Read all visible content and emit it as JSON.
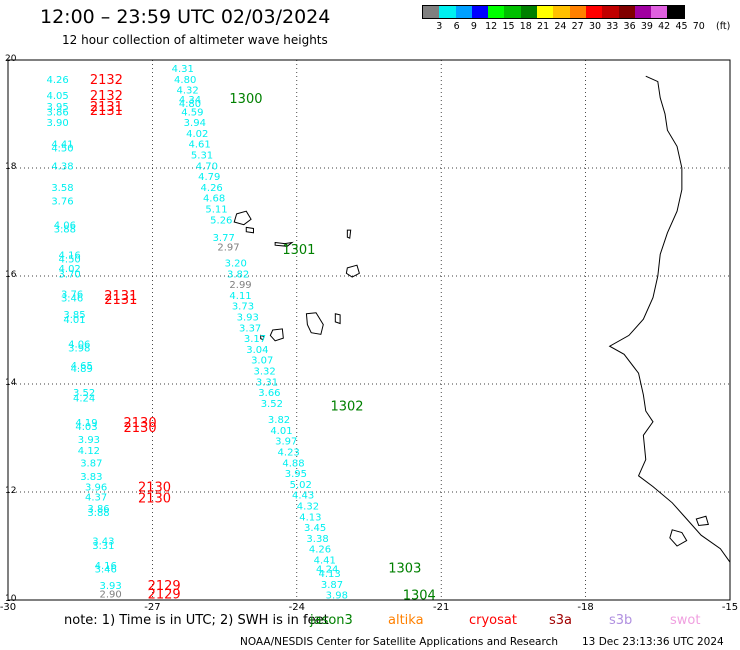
{
  "header": {
    "title": "12:00 – 23:59 UTC 02/03/2024",
    "subtitle": "12 hour collection of altimeter wave heights"
  },
  "legend": {
    "unit": "(ft)",
    "bins": [
      {
        "label": "3",
        "color": "#808080"
      },
      {
        "label": "6",
        "color": "#00f0f0"
      },
      {
        "label": "9",
        "color": "#00a0ff"
      },
      {
        "label": "12",
        "color": "#0000ff"
      },
      {
        "label": "15",
        "color": "#00ff00"
      },
      {
        "label": "18",
        "color": "#00c000"
      },
      {
        "label": "21",
        "color": "#008000"
      },
      {
        "label": "24",
        "color": "#ffff00"
      },
      {
        "label": "27",
        "color": "#ffc000"
      },
      {
        "label": "30",
        "color": "#ff8000"
      },
      {
        "label": "33",
        "color": "#ff0000"
      },
      {
        "label": "36",
        "color": "#c00000"
      },
      {
        "label": "39",
        "color": "#800000"
      },
      {
        "label": "42",
        "color": "#a000a0"
      },
      {
        "label": "45",
        "color": "#e060e0"
      },
      {
        "label": "70",
        "color": "#000000"
      }
    ]
  },
  "map": {
    "lon_range": [
      -30,
      -15
    ],
    "lat_range": [
      10,
      20
    ],
    "lat_ticks": [
      "20",
      "18",
      "16",
      "14",
      "12",
      "10"
    ],
    "lon_ticks": [
      "-30",
      "-27",
      "-24",
      "-21",
      "-18",
      "-15"
    ]
  },
  "passes": [
    {
      "label": "2132",
      "color": "#ff0000",
      "lon": -28.3,
      "lat": 19.65
    },
    {
      "label": "2132",
      "color": "#ff0000",
      "lon": -28.3,
      "lat": 19.35
    },
    {
      "label": "2131",
      "color": "#ff0000",
      "lon": -28.3,
      "lat": 19.15
    },
    {
      "label": "2131",
      "color": "#ff0000",
      "lon": -28.3,
      "lat": 19.07
    },
    {
      "label": "1300",
      "color": "#008000",
      "lon": -25.4,
      "lat": 19.3
    },
    {
      "label": "1301",
      "color": "#008000",
      "lon": -24.3,
      "lat": 16.5
    },
    {
      "label": "2131",
      "color": "#ff0000",
      "lon": -28.0,
      "lat": 15.65
    },
    {
      "label": "2131",
      "color": "#ff0000",
      "lon": -28.0,
      "lat": 15.57
    },
    {
      "label": "1302",
      "color": "#008000",
      "lon": -23.3,
      "lat": 13.6
    },
    {
      "label": "2130",
      "color": "#ff0000",
      "lon": -27.6,
      "lat": 13.3
    },
    {
      "label": "2130",
      "color": "#ff0000",
      "lon": -27.6,
      "lat": 13.2
    },
    {
      "label": "2130",
      "color": "#ff0000",
      "lon": -27.3,
      "lat": 12.1
    },
    {
      "label": "2130",
      "color": "#ff0000",
      "lon": -27.3,
      "lat": 11.9
    },
    {
      "label": "1303",
      "color": "#008000",
      "lon": -22.1,
      "lat": 10.6
    },
    {
      "label": "2129",
      "color": "#ff0000",
      "lon": -27.1,
      "lat": 10.28
    },
    {
      "label": "2129",
      "color": "#ff0000",
      "lon": -27.1,
      "lat": 10.12
    },
    {
      "label": "1304",
      "color": "#008000",
      "lon": -21.8,
      "lat": 10.1
    }
  ],
  "observations": [
    {
      "v": "4.31",
      "c": "#00f0f0",
      "lon": -26.6,
      "lat": 19.85
    },
    {
      "v": "4.80",
      "c": "#00f0f0",
      "lon": -26.55,
      "lat": 19.65
    },
    {
      "v": "4.32",
      "c": "#00f0f0",
      "lon": -26.5,
      "lat": 19.45
    },
    {
      "v": "4.34",
      "c": "#00f0f0",
      "lon": -26.45,
      "lat": 19.28
    },
    {
      "v": "4.80",
      "c": "#00f0f0",
      "lon": -26.45,
      "lat": 19.2
    },
    {
      "v": "4.59",
      "c": "#00f0f0",
      "lon": -26.4,
      "lat": 19.05
    },
    {
      "v": "3.94",
      "c": "#00f0f0",
      "lon": -26.35,
      "lat": 18.85
    },
    {
      "v": "4.02",
      "c": "#00f0f0",
      "lon": -26.3,
      "lat": 18.65
    },
    {
      "v": "4.61",
      "c": "#00f0f0",
      "lon": -26.25,
      "lat": 18.45
    },
    {
      "v": "5.31",
      "c": "#00f0f0",
      "lon": -26.2,
      "lat": 18.25
    },
    {
      "v": "4.70",
      "c": "#00f0f0",
      "lon": -26.1,
      "lat": 18.05
    },
    {
      "v": "4.79",
      "c": "#00f0f0",
      "lon": -26.05,
      "lat": 17.85
    },
    {
      "v": "4.26",
      "c": "#00f0f0",
      "lon": -26.0,
      "lat": 17.65
    },
    {
      "v": "4.68",
      "c": "#00f0f0",
      "lon": -25.95,
      "lat": 17.45
    },
    {
      "v": "5.11",
      "c": "#00f0f0",
      "lon": -25.9,
      "lat": 17.25
    },
    {
      "v": "5.26",
      "c": "#00f0f0",
      "lon": -25.8,
      "lat": 17.05
    },
    {
      "v": "3.77",
      "c": "#00f0f0",
      "lon": -25.75,
      "lat": 16.72
    },
    {
      "v": "2.97",
      "c": "#808080",
      "lon": -25.65,
      "lat": 16.55
    },
    {
      "v": "3.20",
      "c": "#00f0f0",
      "lon": -25.5,
      "lat": 16.25
    },
    {
      "v": "3.82",
      "c": "#00f0f0",
      "lon": -25.45,
      "lat": 16.05
    },
    {
      "v": "2.99",
      "c": "#808080",
      "lon": -25.4,
      "lat": 15.85
    },
    {
      "v": "4.11",
      "c": "#00f0f0",
      "lon": -25.4,
      "lat": 15.65
    },
    {
      "v": "3.73",
      "c": "#00f0f0",
      "lon": -25.35,
      "lat": 15.45
    },
    {
      "v": "3.93",
      "c": "#00f0f0",
      "lon": -25.25,
      "lat": 15.25
    },
    {
      "v": "3.37",
      "c": "#00f0f0",
      "lon": -25.2,
      "lat": 15.05
    },
    {
      "v": "3.17",
      "c": "#00f0f0",
      "lon": -25.1,
      "lat": 14.85
    },
    {
      "v": "3.04",
      "c": "#00f0f0",
      "lon": -25.05,
      "lat": 14.65
    },
    {
      "v": "3.07",
      "c": "#00f0f0",
      "lon": -24.95,
      "lat": 14.45
    },
    {
      "v": "3.32",
      "c": "#00f0f0",
      "lon": -24.9,
      "lat": 14.25
    },
    {
      "v": "3.31",
      "c": "#00f0f0",
      "lon": -24.85,
      "lat": 14.05
    },
    {
      "v": "3.66",
      "c": "#00f0f0",
      "lon": -24.8,
      "lat": 13.85
    },
    {
      "v": "3.52",
      "c": "#00f0f0",
      "lon": -24.75,
      "lat": 13.65
    },
    {
      "v": "3.82",
      "c": "#00f0f0",
      "lon": -24.6,
      "lat": 13.35
    },
    {
      "v": "4.01",
      "c": "#00f0f0",
      "lon": -24.55,
      "lat": 13.15
    },
    {
      "v": "3.97",
      "c": "#00f0f0",
      "lon": -24.45,
      "lat": 12.95
    },
    {
      "v": "4.23",
      "c": "#00f0f0",
      "lon": -24.4,
      "lat": 12.75
    },
    {
      "v": "4.88",
      "c": "#00f0f0",
      "lon": -24.3,
      "lat": 12.55
    },
    {
      "v": "3.95",
      "c": "#00f0f0",
      "lon": -24.25,
      "lat": 12.35
    },
    {
      "v": "5.02",
      "c": "#00f0f0",
      "lon": -24.15,
      "lat": 12.15
    },
    {
      "v": "4.43",
      "c": "#00f0f0",
      "lon": -24.1,
      "lat": 11.95
    },
    {
      "v": "4.32",
      "c": "#00f0f0",
      "lon": -24.0,
      "lat": 11.75
    },
    {
      "v": "4.13",
      "c": "#00f0f0",
      "lon": -23.95,
      "lat": 11.55
    },
    {
      "v": "3.45",
      "c": "#00f0f0",
      "lon": -23.85,
      "lat": 11.35
    },
    {
      "v": "3.38",
      "c": "#00f0f0",
      "lon": -23.8,
      "lat": 11.15
    },
    {
      "v": "4.26",
      "c": "#00f0f0",
      "lon": -23.75,
      "lat": 10.95
    },
    {
      "v": "4.41",
      "c": "#00f0f0",
      "lon": -23.65,
      "lat": 10.75
    },
    {
      "v": "4.24",
      "c": "#00f0f0",
      "lon": -23.6,
      "lat": 10.58
    },
    {
      "v": "4.13",
      "c": "#00f0f0",
      "lon": -23.55,
      "lat": 10.5
    },
    {
      "v": "3.87",
      "c": "#00f0f0",
      "lon": -23.5,
      "lat": 10.3
    },
    {
      "v": "3.98",
      "c": "#00f0f0",
      "lon": -23.4,
      "lat": 10.1
    },
    {
      "v": "4.26",
      "c": "#00f0f0",
      "lon": -29.2,
      "lat": 19.65
    },
    {
      "v": "4.05",
      "c": "#00f0f0",
      "lon": -29.2,
      "lat": 19.35
    },
    {
      "v": "3.95",
      "c": "#00f0f0",
      "lon": -29.2,
      "lat": 19.15
    },
    {
      "v": "3.86",
      "c": "#00f0f0",
      "lon": -29.2,
      "lat": 19.05
    },
    {
      "v": "3.90",
      "c": "#00f0f0",
      "lon": -29.2,
      "lat": 18.85
    },
    {
      "v": "4.41",
      "c": "#00f0f0",
      "lon": -29.1,
      "lat": 18.45
    },
    {
      "v": "4.50",
      "c": "#00f0f0",
      "lon": -29.1,
      "lat": 18.38
    },
    {
      "v": "4.38",
      "c": "#00f0f0",
      "lon": -29.1,
      "lat": 18.05
    },
    {
      "v": "3.58",
      "c": "#00f0f0",
      "lon": -29.1,
      "lat": 17.65
    },
    {
      "v": "3.76",
      "c": "#00f0f0",
      "lon": -29.1,
      "lat": 17.4
    },
    {
      "v": "4.06",
      "c": "#00f0f0",
      "lon": -29.05,
      "lat": 16.95
    },
    {
      "v": "3.88",
      "c": "#00f0f0",
      "lon": -29.05,
      "lat": 16.88
    },
    {
      "v": "4.16",
      "c": "#00f0f0",
      "lon": -28.95,
      "lat": 16.4
    },
    {
      "v": "4.50",
      "c": "#00f0f0",
      "lon": -28.95,
      "lat": 16.32
    },
    {
      "v": "4.02",
      "c": "#00f0f0",
      "lon": -28.95,
      "lat": 16.15
    },
    {
      "v": "3.70",
      "c": "#00f0f0",
      "lon": -28.95,
      "lat": 16.05
    },
    {
      "v": "3.76",
      "c": "#00f0f0",
      "lon": -28.9,
      "lat": 15.68
    },
    {
      "v": "3.46",
      "c": "#00f0f0",
      "lon": -28.9,
      "lat": 15.6
    },
    {
      "v": "3.85",
      "c": "#00f0f0",
      "lon": -28.85,
      "lat": 15.3
    },
    {
      "v": "4.01",
      "c": "#00f0f0",
      "lon": -28.85,
      "lat": 15.2
    },
    {
      "v": "4.06",
      "c": "#00f0f0",
      "lon": -28.75,
      "lat": 14.75
    },
    {
      "v": "3.98",
      "c": "#00f0f0",
      "lon": -28.75,
      "lat": 14.68
    },
    {
      "v": "4.65",
      "c": "#00f0f0",
      "lon": -28.7,
      "lat": 14.35
    },
    {
      "v": "4.89",
      "c": "#00f0f0",
      "lon": -28.7,
      "lat": 14.3
    },
    {
      "v": "3.52",
      "c": "#00f0f0",
      "lon": -28.65,
      "lat": 13.85
    },
    {
      "v": "4.24",
      "c": "#00f0f0",
      "lon": -28.65,
      "lat": 13.75
    },
    {
      "v": "4.19",
      "c": "#00f0f0",
      "lon": -28.6,
      "lat": 13.3
    },
    {
      "v": "4.03",
      "c": "#00f0f0",
      "lon": -28.6,
      "lat": 13.22
    },
    {
      "v": "3.93",
      "c": "#00f0f0",
      "lon": -28.55,
      "lat": 12.98
    },
    {
      "v": "4.12",
      "c": "#00f0f0",
      "lon": -28.55,
      "lat": 12.78
    },
    {
      "v": "3.87",
      "c": "#00f0f0",
      "lon": -28.5,
      "lat": 12.55
    },
    {
      "v": "3.83",
      "c": "#00f0f0",
      "lon": -28.5,
      "lat": 12.3
    },
    {
      "v": "3.96",
      "c": "#00f0f0",
      "lon": -28.4,
      "lat": 12.1
    },
    {
      "v": "4.37",
      "c": "#00f0f0",
      "lon": -28.4,
      "lat": 11.92
    },
    {
      "v": "3.86",
      "c": "#00f0f0",
      "lon": -28.35,
      "lat": 11.7
    },
    {
      "v": "3.88",
      "c": "#00f0f0",
      "lon": -28.35,
      "lat": 11.63
    },
    {
      "v": "3.43",
      "c": "#00f0f0",
      "lon": -28.25,
      "lat": 11.1
    },
    {
      "v": "3.31",
      "c": "#00f0f0",
      "lon": -28.25,
      "lat": 11.02
    },
    {
      "v": "4.16",
      "c": "#00f0f0",
      "lon": -28.2,
      "lat": 10.65
    },
    {
      "v": "3.46",
      "c": "#00f0f0",
      "lon": -28.2,
      "lat": 10.58
    },
    {
      "v": "3.93",
      "c": "#00f0f0",
      "lon": -28.1,
      "lat": 10.28
    },
    {
      "v": "2.90",
      "c": "#808080",
      "lon": -28.1,
      "lat": 10.12
    }
  ],
  "land": [
    {
      "name": "coastline",
      "points": [
        [
          -16.75,
          19.7
        ],
        [
          -16.5,
          19.6
        ],
        [
          -16.45,
          19.3
        ],
        [
          -16.35,
          19.0
        ],
        [
          -16.3,
          18.7
        ],
        [
          -16.1,
          18.4
        ],
        [
          -16.0,
          18.0
        ],
        [
          -16.0,
          17.6
        ],
        [
          -16.1,
          17.2
        ],
        [
          -16.3,
          16.8
        ],
        [
          -16.45,
          16.4
        ],
        [
          -16.5,
          16.0
        ],
        [
          -16.6,
          15.6
        ],
        [
          -16.8,
          15.2
        ],
        [
          -17.1,
          14.9
        ],
        [
          -17.5,
          14.7
        ],
        [
          -17.2,
          14.55
        ],
        [
          -16.9,
          14.2
        ],
        [
          -16.8,
          13.8
        ],
        [
          -16.75,
          13.5
        ],
        [
          -16.6,
          13.3
        ],
        [
          -16.8,
          13.05
        ],
        [
          -16.75,
          12.6
        ],
        [
          -16.9,
          12.3
        ],
        [
          -16.6,
          12.1
        ],
        [
          -16.2,
          11.8
        ],
        [
          -15.9,
          11.5
        ],
        [
          -15.6,
          11.2
        ],
        [
          -15.2,
          10.95
        ],
        [
          -15.0,
          10.7
        ]
      ]
    },
    {
      "name": "santo-antao",
      "points": [
        [
          -25.25,
          17.15
        ],
        [
          -25.05,
          17.2
        ],
        [
          -24.95,
          17.05
        ],
        [
          -25.1,
          16.95
        ],
        [
          -25.3,
          17.0
        ]
      ]
    },
    {
      "name": "sao-vicente",
      "points": [
        [
          -25.05,
          16.9
        ],
        [
          -24.9,
          16.88
        ],
        [
          -24.9,
          16.8
        ],
        [
          -25.05,
          16.82
        ]
      ]
    },
    {
      "name": "sao-nicolau",
      "points": [
        [
          -24.45,
          16.62
        ],
        [
          -24.25,
          16.6
        ],
        [
          -24.1,
          16.62
        ],
        [
          -24.2,
          16.55
        ],
        [
          -24.45,
          16.57
        ]
      ]
    },
    {
      "name": "sal",
      "points": [
        [
          -22.95,
          16.85
        ],
        [
          -22.88,
          16.85
        ],
        [
          -22.9,
          16.7
        ],
        [
          -22.95,
          16.72
        ]
      ]
    },
    {
      "name": "boa-vista",
      "points": [
        [
          -22.95,
          16.15
        ],
        [
          -22.75,
          16.2
        ],
        [
          -22.7,
          16.05
        ],
        [
          -22.85,
          15.98
        ],
        [
          -22.97,
          16.05
        ]
      ]
    },
    {
      "name": "maio",
      "points": [
        [
          -23.2,
          15.3
        ],
        [
          -23.1,
          15.28
        ],
        [
          -23.1,
          15.12
        ],
        [
          -23.2,
          15.15
        ]
      ]
    },
    {
      "name": "santiago",
      "points": [
        [
          -23.8,
          15.3
        ],
        [
          -23.6,
          15.32
        ],
        [
          -23.45,
          15.1
        ],
        [
          -23.5,
          14.92
        ],
        [
          -23.7,
          14.95
        ],
        [
          -23.78,
          15.1
        ]
      ]
    },
    {
      "name": "fogo",
      "points": [
        [
          -24.5,
          15.0
        ],
        [
          -24.3,
          15.02
        ],
        [
          -24.28,
          14.85
        ],
        [
          -24.45,
          14.8
        ],
        [
          -24.55,
          14.9
        ]
      ]
    },
    {
      "name": "brava",
      "points": [
        [
          -24.75,
          14.9
        ],
        [
          -24.68,
          14.88
        ],
        [
          -24.7,
          14.82
        ],
        [
          -24.75,
          14.84
        ]
      ]
    },
    {
      "name": "bijagos",
      "points": [
        [
          -16.2,
          11.3
        ],
        [
          -16.0,
          11.25
        ],
        [
          -15.9,
          11.1
        ],
        [
          -16.1,
          11.0
        ],
        [
          -16.25,
          11.15
        ]
      ]
    },
    {
      "name": "bijagos-b",
      "points": [
        [
          -15.7,
          11.5
        ],
        [
          -15.5,
          11.55
        ],
        [
          -15.45,
          11.4
        ],
        [
          -15.65,
          11.38
        ]
      ]
    }
  ],
  "footer": {
    "note": "note:  1) Time is in UTC; 2) SWH is in feet",
    "satellites": [
      {
        "name": "jason3",
        "color": "#008000",
        "offset": 246
      },
      {
        "name": "altika",
        "color": "#ff8000",
        "offset": 324
      },
      {
        "name": "cryosat",
        "color": "#ff0000",
        "offset": 405
      },
      {
        "name": "s3a",
        "color": "#a00000",
        "offset": 485
      },
      {
        "name": "s3b",
        "color": "#b090e0",
        "offset": 545
      },
      {
        "name": "swot",
        "color": "#f0a0e0",
        "offset": 606
      }
    ],
    "credit": "NOAA/NESDIS Center for Satellite Applications and Research",
    "timestamp": "13 Dec 23:13:36 UTC 2024"
  }
}
